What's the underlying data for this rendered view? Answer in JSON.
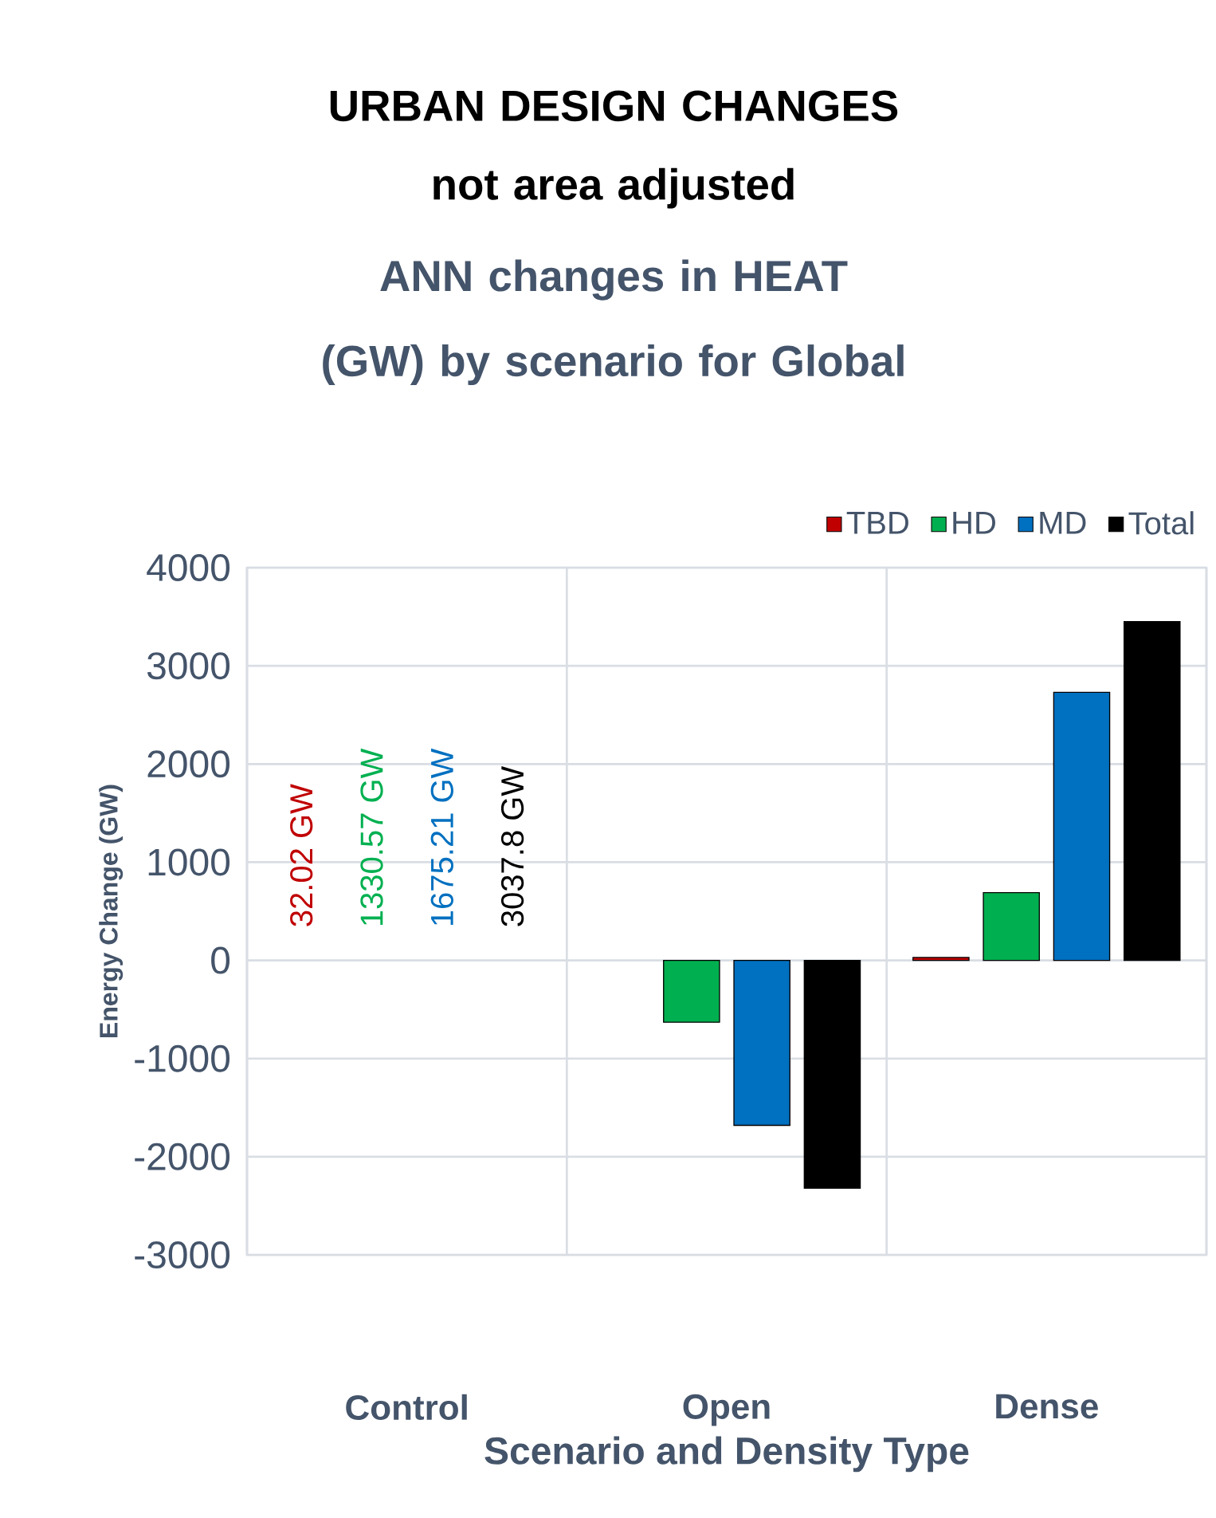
{
  "chart_data": {
    "type": "bar",
    "title": "URBAN DESIGN CHANGES not area adjusted",
    "subtitle": "ANN changes in HEAT (GW) by scenario for Global",
    "xlabel": "Scenario and Density Type",
    "ylabel": "Energy Change (GW)",
    "categories": [
      "Control",
      "Open",
      "Dense"
    ],
    "series": [
      {
        "name": "TBD",
        "color": "#c00000",
        "values": [
          null,
          null,
          30
        ]
      },
      {
        "name": "HD",
        "color": "#00b050",
        "values": [
          null,
          -630,
          690
        ]
      },
      {
        "name": "MD",
        "color": "#0070c0",
        "values": [
          null,
          -1680,
          2730
        ]
      },
      {
        "name": "Total",
        "color": "#000000",
        "values": [
          null,
          -2320,
          3450
        ]
      }
    ],
    "ylim": [
      -3000,
      4000
    ],
    "yticks": [
      -3000,
      -2000,
      -1000,
      0,
      1000,
      2000,
      3000,
      4000
    ],
    "grid": true,
    "legend": "top right",
    "annotations": [
      "32.02 GW",
      "1330.57 GW",
      "1675.21 GW",
      "3037.8 GW"
    ]
  }
}
